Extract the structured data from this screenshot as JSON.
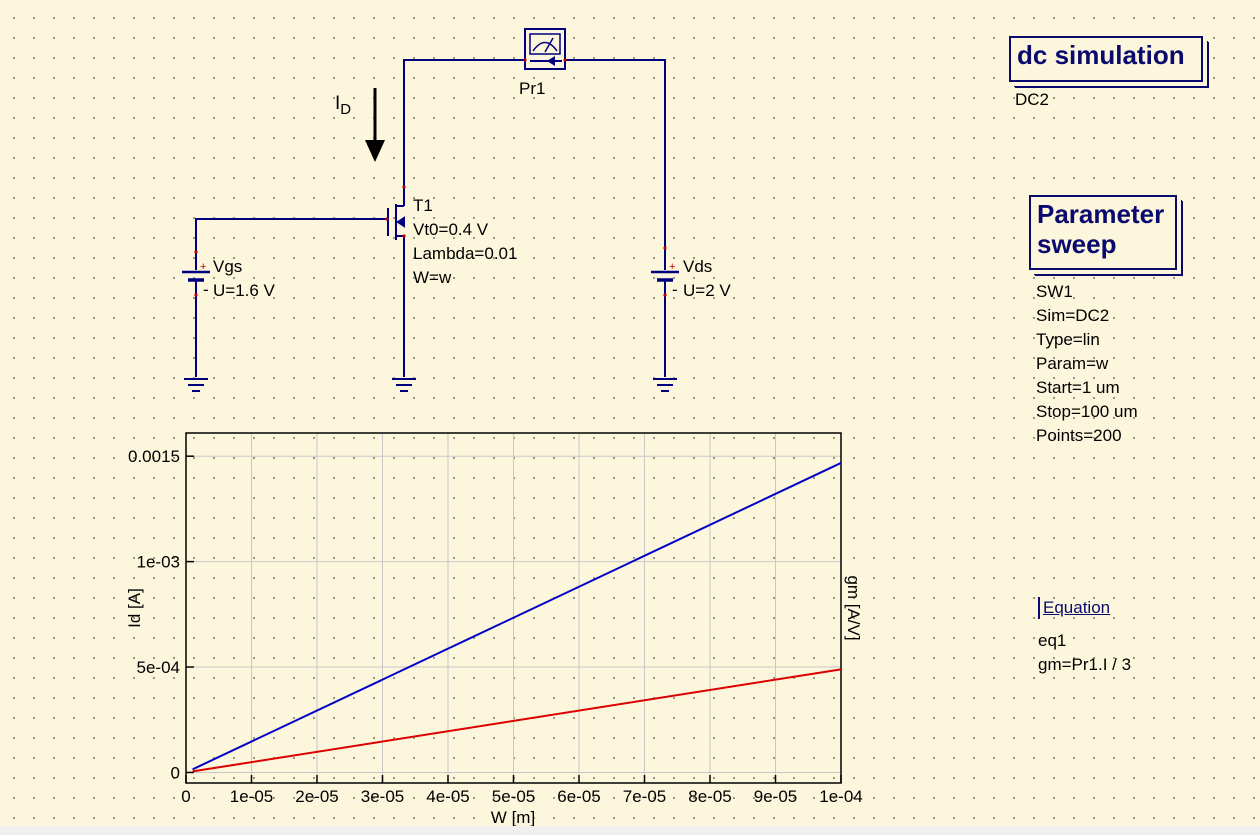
{
  "schematic": {
    "current_label": {
      "main": "I",
      "sub": "D"
    },
    "probe": {
      "name": "Pr1"
    },
    "transistor": {
      "name": "T1",
      "params": [
        "Vt0=0.4 V",
        "Lambda=0.01",
        "W=w"
      ]
    },
    "vgs": {
      "name": "Vgs",
      "value": "U=1.6 V",
      "plus": "+",
      "minus": "-"
    },
    "vds": {
      "name": "Vds",
      "value": "U=2 V",
      "plus": "+",
      "minus": "-"
    }
  },
  "dc_simulation": {
    "title": "dc simulation",
    "name": "DC2"
  },
  "parameter_sweep": {
    "title_line1": "Parameter",
    "title_line2": "sweep",
    "props": [
      "SW1",
      "Sim=DC2",
      "Type=lin",
      "Param=w",
      "Start=1 um",
      "Stop=100 um",
      "Points=200"
    ]
  },
  "equation": {
    "title": "Equation",
    "name": "eq1",
    "expr": "gm=Pr1.I / 3"
  },
  "colors": {
    "wire": "#00007f",
    "series_id": "#0000c8",
    "series_gm": "#dc0000",
    "grid": "#c8c8c8"
  },
  "chart_data": {
    "type": "line",
    "xlabel": "W [m]",
    "ylabel": "Id [A]",
    "ylabel_right": "gm [A/V]",
    "xlim": [
      0,
      0.0001
    ],
    "ylim": [
      -5e-05,
      0.00161
    ],
    "x_ticks": [
      0,
      1e-05,
      2e-05,
      3e-05,
      4e-05,
      5e-05,
      6e-05,
      7e-05,
      8e-05,
      9e-05,
      0.0001
    ],
    "x_tick_labels": [
      "0",
      "1e-05",
      "2e-05",
      "3e-05",
      "4e-05",
      "5e-05",
      "6e-05",
      "7e-05",
      "8e-05",
      "9e-05",
      "1e-04"
    ],
    "y_ticks": [
      0,
      0.0005,
      0.001,
      0.0015
    ],
    "y_tick_labels": [
      "0",
      "5e-04",
      "1e-03",
      "0.0015"
    ],
    "grid": true,
    "series": [
      {
        "x": [
          1e-06,
          0.0001
        ],
        "y": [
          1.47e-05,
          0.001468
        ]
      },
      {
        "x": [
          1e-06,
          0.0001
        ],
        "y": [
          4.9e-06,
          0.000489
        ]
      }
    ]
  }
}
